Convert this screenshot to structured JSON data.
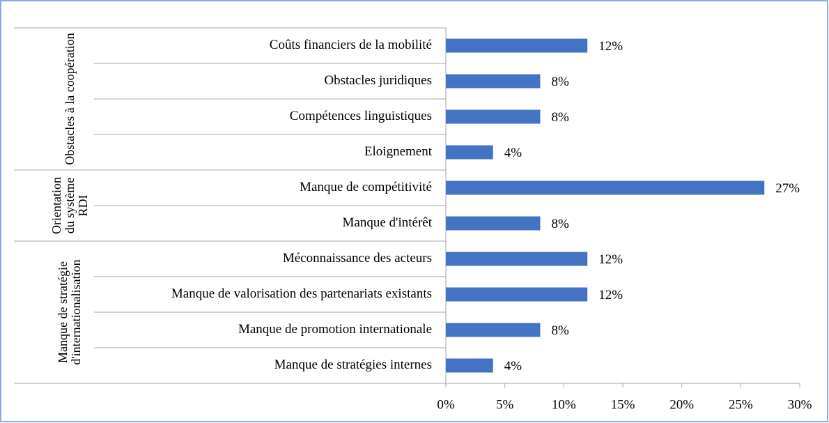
{
  "chart_data": {
    "type": "bar",
    "orientation": "horizontal",
    "color": "#4472c4",
    "groups": [
      {
        "name": "Obstacles à la coopération",
        "categories": [
          "Coûts financiers de la mobilité",
          "Obstacles juridiques",
          "Compétences linguistiques",
          "Eloignement"
        ],
        "values": [
          12,
          8,
          8,
          4
        ],
        "value_labels": [
          "12%",
          "8%",
          "8%",
          "4%"
        ]
      },
      {
        "name": "Orientation du système RDI",
        "categories": [
          "Manque de compétitivité",
          "Manque d'intérêt"
        ],
        "values": [
          27,
          8
        ],
        "value_labels": [
          "27%",
          "8%"
        ]
      },
      {
        "name": "Manque de stratégie d'internationalisation",
        "categories": [
          "Méconnaissance des acteurs",
          "Manque de valorisation des partenariats existants",
          "Manque de promotion internationale",
          "Manque de stratégies internes"
        ],
        "values": [
          12,
          12,
          8,
          4
        ],
        "value_labels": [
          "12%",
          "12%",
          "8%",
          "4%"
        ]
      }
    ],
    "xlim": [
      0,
      30
    ],
    "xticks": [
      {
        "value": 0,
        "label": "0%"
      },
      {
        "value": 5,
        "label": "5%"
      },
      {
        "value": 10,
        "label": "10%"
      },
      {
        "value": 15,
        "label": "15%"
      },
      {
        "value": 20,
        "label": "20%"
      },
      {
        "value": 25,
        "label": "25%"
      },
      {
        "value": 30,
        "label": "30%"
      }
    ]
  }
}
